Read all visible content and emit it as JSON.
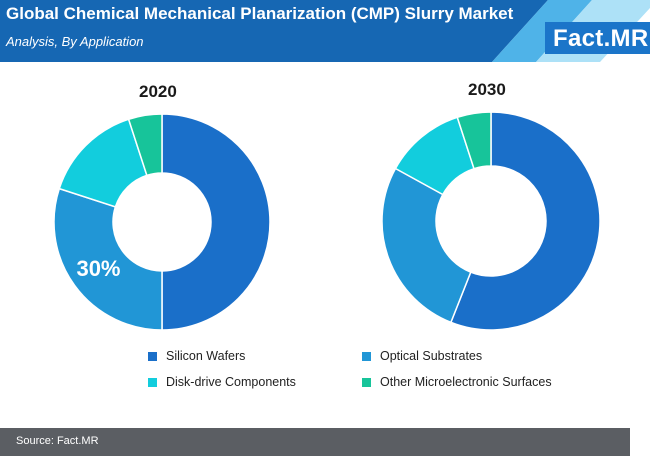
{
  "header": {
    "title": "Global Chemical Mechanical Planarization (CMP) Slurry Market",
    "subtitle": "Analysis, By Application",
    "logo_main": "Fact",
    "logo_dot": ".",
    "logo_suffix": "MR"
  },
  "colors": {
    "header_bg": "#1667b3",
    "stripe_light": "#4fb3e8",
    "stripe_pale": "#9fdcf6",
    "footer_bg": "#5b5e63"
  },
  "chart_data": [
    {
      "type": "pie",
      "title": "2020",
      "categories": [
        "Silicon Wafers",
        "Optical Substrates",
        "Disk-drive Components",
        "Other Microelectronic Surfaces"
      ],
      "values": [
        50,
        30,
        15,
        5
      ],
      "colors": [
        "#1a6fc9",
        "#2196d6",
        "#12cddd",
        "#17c49a"
      ],
      "data_labels": [
        "",
        "30%",
        "",
        ""
      ]
    },
    {
      "type": "pie",
      "title": "2030",
      "categories": [
        "Silicon Wafers",
        "Optical Substrates",
        "Disk-drive Components",
        "Other Microelectronic Surfaces"
      ],
      "values": [
        56,
        27,
        12,
        5
      ],
      "colors": [
        "#1a6fc9",
        "#2196d6",
        "#12cddd",
        "#17c49a"
      ],
      "data_labels": [
        "",
        "",
        "",
        ""
      ]
    }
  ],
  "legend": [
    {
      "label": "Silicon Wafers",
      "color": "#1a6fc9"
    },
    {
      "label": "Optical Substrates",
      "color": "#2196d6"
    },
    {
      "label": "Disk-drive Components",
      "color": "#12cddd"
    },
    {
      "label": "Other Microelectronic Surfaces",
      "color": "#17c49a"
    }
  ],
  "footer": {
    "source": "Source: Fact.MR"
  }
}
